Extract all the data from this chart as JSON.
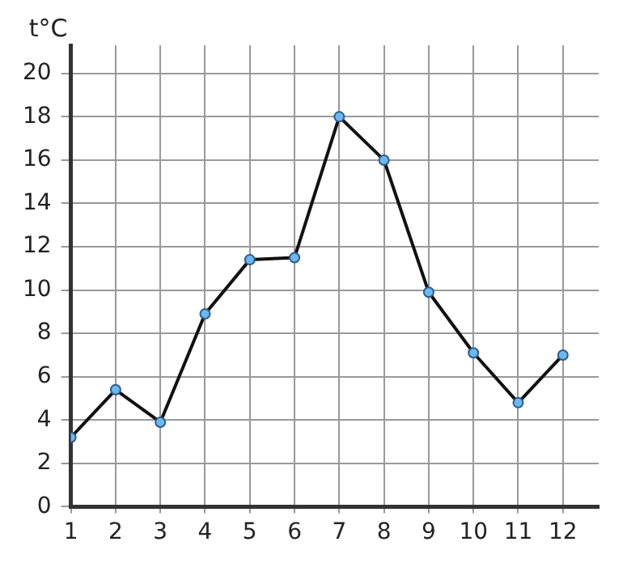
{
  "chart_data": {
    "type": "line",
    "ylabel": "t°C",
    "x": [
      1,
      2,
      3,
      4,
      5,
      6,
      7,
      8,
      9,
      10,
      11,
      12
    ],
    "series": [
      {
        "color": "#111111",
        "values": [
          3.2,
          5.4,
          3.9,
          8.9,
          11.4,
          11.5,
          18,
          16,
          9.9,
          7.1,
          4.8,
          7
        ]
      }
    ],
    "xlim": [
      1,
      12.8
    ],
    "xticks": [
      1,
      2,
      3,
      4,
      5,
      6,
      7,
      8,
      9,
      10,
      11,
      12
    ],
    "ylim": [
      0,
      21.3
    ],
    "yticks": [
      0,
      2,
      4,
      6,
      8,
      10,
      12,
      14,
      16,
      18,
      20
    ],
    "grid": true,
    "legend": false,
    "marker": "circle",
    "line_style": "solid"
  }
}
